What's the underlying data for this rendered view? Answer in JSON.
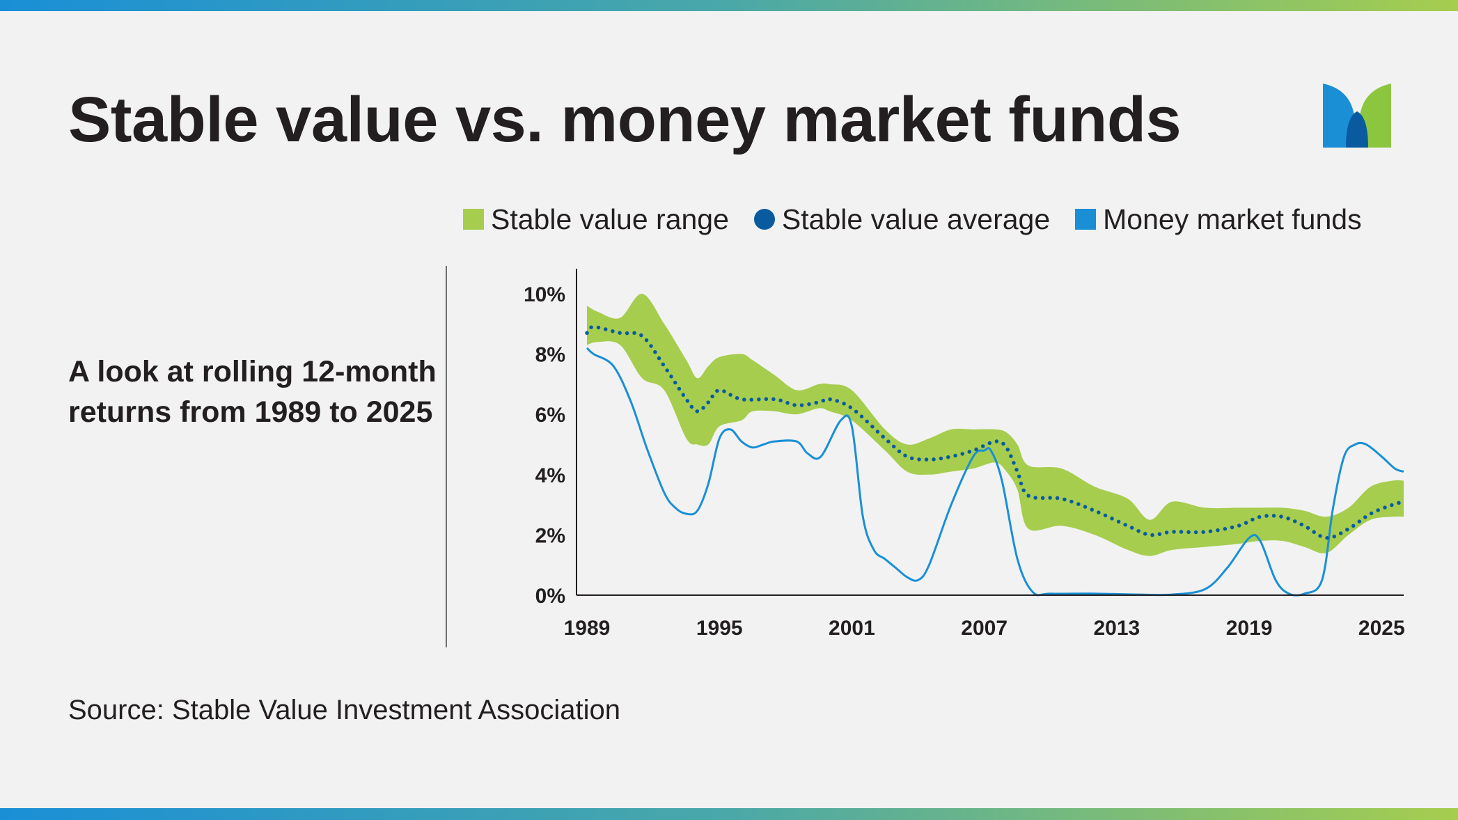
{
  "title": "Stable value vs. money market funds",
  "subtitle": "A look at rolling 12-month returns from 1989 to 2025",
  "source": "Source: Stable Value Investment Association",
  "logo": {
    "icon": "m-logo-icon",
    "colors": [
      "#1a8fd6",
      "#0a5aa0",
      "#8cc63f"
    ]
  },
  "legend": [
    {
      "label": "Stable value range",
      "shape": "square",
      "color": "#a6cd4e"
    },
    {
      "label": "Stable value average",
      "shape": "circle",
      "color": "#0a5aa0"
    },
    {
      "label": "Money market funds",
      "shape": "square",
      "color": "#1a8fd6"
    }
  ],
  "chart_data": {
    "type": "line",
    "xlim": [
      1989,
      2026
    ],
    "ylim": [
      0,
      10
    ],
    "x_ticks": [
      1989,
      1995,
      2001,
      2007,
      2013,
      2019,
      2025
    ],
    "x_tick_labels": [
      "1989",
      "1995",
      "2001",
      "2007",
      "2013",
      "2019",
      "2025"
    ],
    "y_ticks": [
      0,
      2,
      4,
      6,
      8,
      10
    ],
    "y_tick_labels": [
      "0%",
      "2%",
      "4%",
      "6%",
      "8%",
      "10%"
    ],
    "grid": false,
    "legend_position": "top",
    "series": [
      {
        "name": "Stable value range",
        "style": "band",
        "color": "#a6cd4e",
        "x": [
          1989.0,
          1989.5,
          1990.5,
          1991.5,
          1992.5,
          1993.5,
          1994.0,
          1994.5,
          1995.0,
          1996.0,
          1996.5,
          1997.5,
          1998.5,
          1999.5,
          2000.0,
          2001.0,
          2002.5,
          2003.5,
          2004.5,
          2005.5,
          2006.5,
          2007.5,
          2008.0,
          2008.5,
          2009.0,
          2010.5,
          2012.0,
          2013.5,
          2014.5,
          2015.5,
          2017.0,
          2018.5,
          2019.5,
          2020.5,
          2021.5,
          2022.5,
          2023.5,
          2024.5,
          2025.5,
          2026.0
        ],
        "upper": [
          9.6,
          9.4,
          9.2,
          10.0,
          9.0,
          7.8,
          7.2,
          7.6,
          7.9,
          8.0,
          7.8,
          7.3,
          6.8,
          7.0,
          7.0,
          6.8,
          5.5,
          5.0,
          5.2,
          5.5,
          5.5,
          5.5,
          5.4,
          5.0,
          4.3,
          4.2,
          3.6,
          3.2,
          2.5,
          3.1,
          2.9,
          2.9,
          2.9,
          2.9,
          2.8,
          2.6,
          2.9,
          3.6,
          3.8,
          3.8
        ],
        "lower": [
          8.3,
          8.4,
          8.3,
          7.2,
          6.8,
          5.2,
          5.0,
          5.0,
          5.6,
          5.8,
          6.1,
          6.1,
          6.0,
          6.2,
          6.1,
          5.8,
          4.8,
          4.1,
          4.0,
          4.1,
          4.2,
          4.4,
          4.1,
          3.5,
          2.2,
          2.3,
          2.0,
          1.5,
          1.3,
          1.5,
          1.6,
          1.7,
          1.8,
          1.8,
          1.6,
          1.4,
          2.0,
          2.5,
          2.6,
          2.6
        ]
      },
      {
        "name": "Stable value average",
        "style": "dotted",
        "color": "#0a5aa0",
        "x": [
          1989.0,
          1989.3,
          1990.5,
          1991.5,
          1992.5,
          1993.5,
          1994.0,
          1994.5,
          1995.0,
          1996.0,
          1997.5,
          1998.5,
          1999.5,
          2000.0,
          2001.0,
          2002.5,
          2003.5,
          2004.5,
          2005.5,
          2006.5,
          2007.5,
          2008.0,
          2008.5,
          2009.0,
          2010.5,
          2012.0,
          2013.5,
          2014.5,
          2015.5,
          2017.0,
          2018.5,
          2019.5,
          2020.5,
          2021.5,
          2022.5,
          2023.5,
          2024.5,
          2025.5,
          2026.0
        ],
        "y": [
          8.7,
          8.9,
          8.7,
          8.6,
          7.6,
          6.5,
          6.1,
          6.4,
          6.8,
          6.5,
          6.5,
          6.3,
          6.4,
          6.5,
          6.2,
          5.2,
          4.6,
          4.5,
          4.6,
          4.8,
          5.1,
          4.9,
          4.1,
          3.3,
          3.2,
          2.8,
          2.3,
          2.0,
          2.1,
          2.1,
          2.3,
          2.6,
          2.6,
          2.3,
          1.9,
          2.2,
          2.7,
          3.0,
          3.1
        ]
      },
      {
        "name": "Money market funds",
        "style": "line",
        "color": "#1a8fd6",
        "x": [
          1989.0,
          1989.3,
          1990.2,
          1991.0,
          1991.7,
          1992.5,
          1993.0,
          1993.5,
          1994.0,
          1994.5,
          1995.0,
          1995.5,
          1996.0,
          1996.5,
          1997.0,
          1997.5,
          1998.5,
          1999.0,
          1999.6,
          2000.5,
          2001.0,
          2001.5,
          2002.0,
          2002.5,
          2003.0,
          2003.5,
          2004.0,
          2004.5,
          2005.5,
          2006.5,
          2007.0,
          2007.3,
          2007.8,
          2008.5,
          2009.2,
          2010.0,
          2012.0,
          2014.0,
          2015.5,
          2017.0,
          2018.0,
          2019.0,
          2019.5,
          2020.2,
          2020.8,
          2021.5,
          2022.3,
          2022.8,
          2023.3,
          2023.8,
          2024.3,
          2025.0,
          2025.6,
          2026.0
        ],
        "y": [
          8.2,
          8.0,
          7.6,
          6.4,
          4.9,
          3.4,
          2.9,
          2.7,
          2.8,
          3.7,
          5.2,
          5.5,
          5.1,
          4.9,
          5.0,
          5.1,
          5.1,
          4.7,
          4.6,
          5.8,
          5.6,
          2.6,
          1.5,
          1.2,
          0.9,
          0.6,
          0.5,
          1.0,
          3.0,
          4.6,
          4.8,
          4.8,
          3.8,
          1.2,
          0.1,
          0.05,
          0.05,
          0.02,
          0.02,
          0.2,
          0.9,
          1.9,
          1.8,
          0.5,
          0.05,
          0.05,
          0.5,
          2.9,
          4.6,
          5.0,
          5.0,
          4.6,
          4.2,
          4.1
        ]
      }
    ]
  }
}
